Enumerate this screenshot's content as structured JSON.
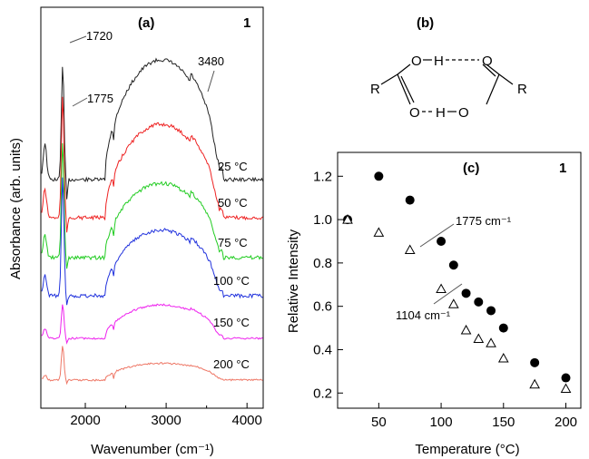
{
  "chart_data": [
    {
      "panel": "(a)",
      "type": "line",
      "corner_label": "1",
      "xlabel": "Wavenumber (cm⁻¹)",
      "ylabel": "Absorbance (arb. units)",
      "xlim": [
        1450,
        4200
      ],
      "x_ticks": [
        2000,
        3000,
        4000
      ],
      "annotations": [
        "1720",
        "1775",
        "3480"
      ],
      "series": [
        {
          "name": "25 °C",
          "color": "#222222"
        },
        {
          "name": "50 °C",
          "color": "#ee2222"
        },
        {
          "name": "75 °C",
          "color": "#22cc22"
        },
        {
          "name": "100 °C",
          "color": "#2233dd"
        },
        {
          "name": "150 °C",
          "color": "#ee22ee"
        },
        {
          "name": "200 °C",
          "color": "#ee7766"
        }
      ]
    },
    {
      "panel": "(b)",
      "type": "diagram",
      "atoms": {
        "r_left": "R",
        "r_right": "R",
        "o1": "O",
        "h1": "H",
        "o2": "O",
        "o3": "O",
        "h2": "H",
        "o4": "O"
      }
    },
    {
      "panel": "(c)",
      "type": "scatter",
      "corner_label": "1",
      "xlabel": "Temperature (°C)",
      "ylabel": "Relative Intensity",
      "xlim": [
        17,
        212
      ],
      "ylim": [
        0.13,
        1.31
      ],
      "x_ticks": [
        50,
        100,
        150,
        200
      ],
      "y_ticks": [
        0.2,
        0.4,
        0.6,
        0.8,
        1.0,
        1.2
      ],
      "series": [
        {
          "name": "1775 cm⁻¹",
          "marker": "filled-circle",
          "x": [
            25,
            50,
            75,
            100,
            110,
            120,
            130,
            140,
            150,
            175,
            200
          ],
          "y": [
            1.0,
            1.2,
            1.09,
            0.9,
            0.79,
            0.66,
            0.62,
            0.58,
            0.5,
            0.34,
            0.27
          ]
        },
        {
          "name": "1104 cm⁻¹",
          "marker": "open-triangle",
          "x": [
            25,
            50,
            75,
            100,
            110,
            120,
            130,
            140,
            150,
            175,
            200
          ],
          "y": [
            1.0,
            0.94,
            0.86,
            0.68,
            0.61,
            0.49,
            0.45,
            0.43,
            0.36,
            0.24,
            0.22
          ]
        }
      ]
    }
  ]
}
